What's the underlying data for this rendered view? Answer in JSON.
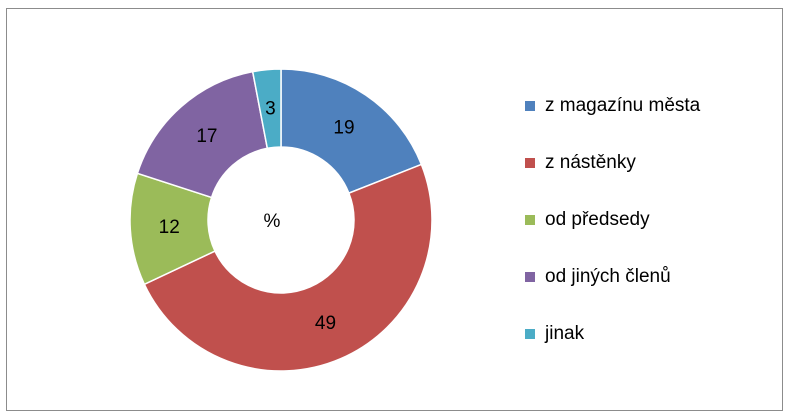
{
  "chart_data": {
    "type": "doughnut",
    "center_label": "%",
    "categories": [
      "z magazínu města",
      "z nástěnky",
      "od předsedy",
      "od jiných členů",
      "jinak"
    ],
    "values": [
      19,
      49,
      12,
      17,
      3
    ],
    "colors": [
      "#4f81bd",
      "#c0504d",
      "#9bbb59",
      "#8064a2",
      "#4bacc6"
    ],
    "legend": "right"
  }
}
